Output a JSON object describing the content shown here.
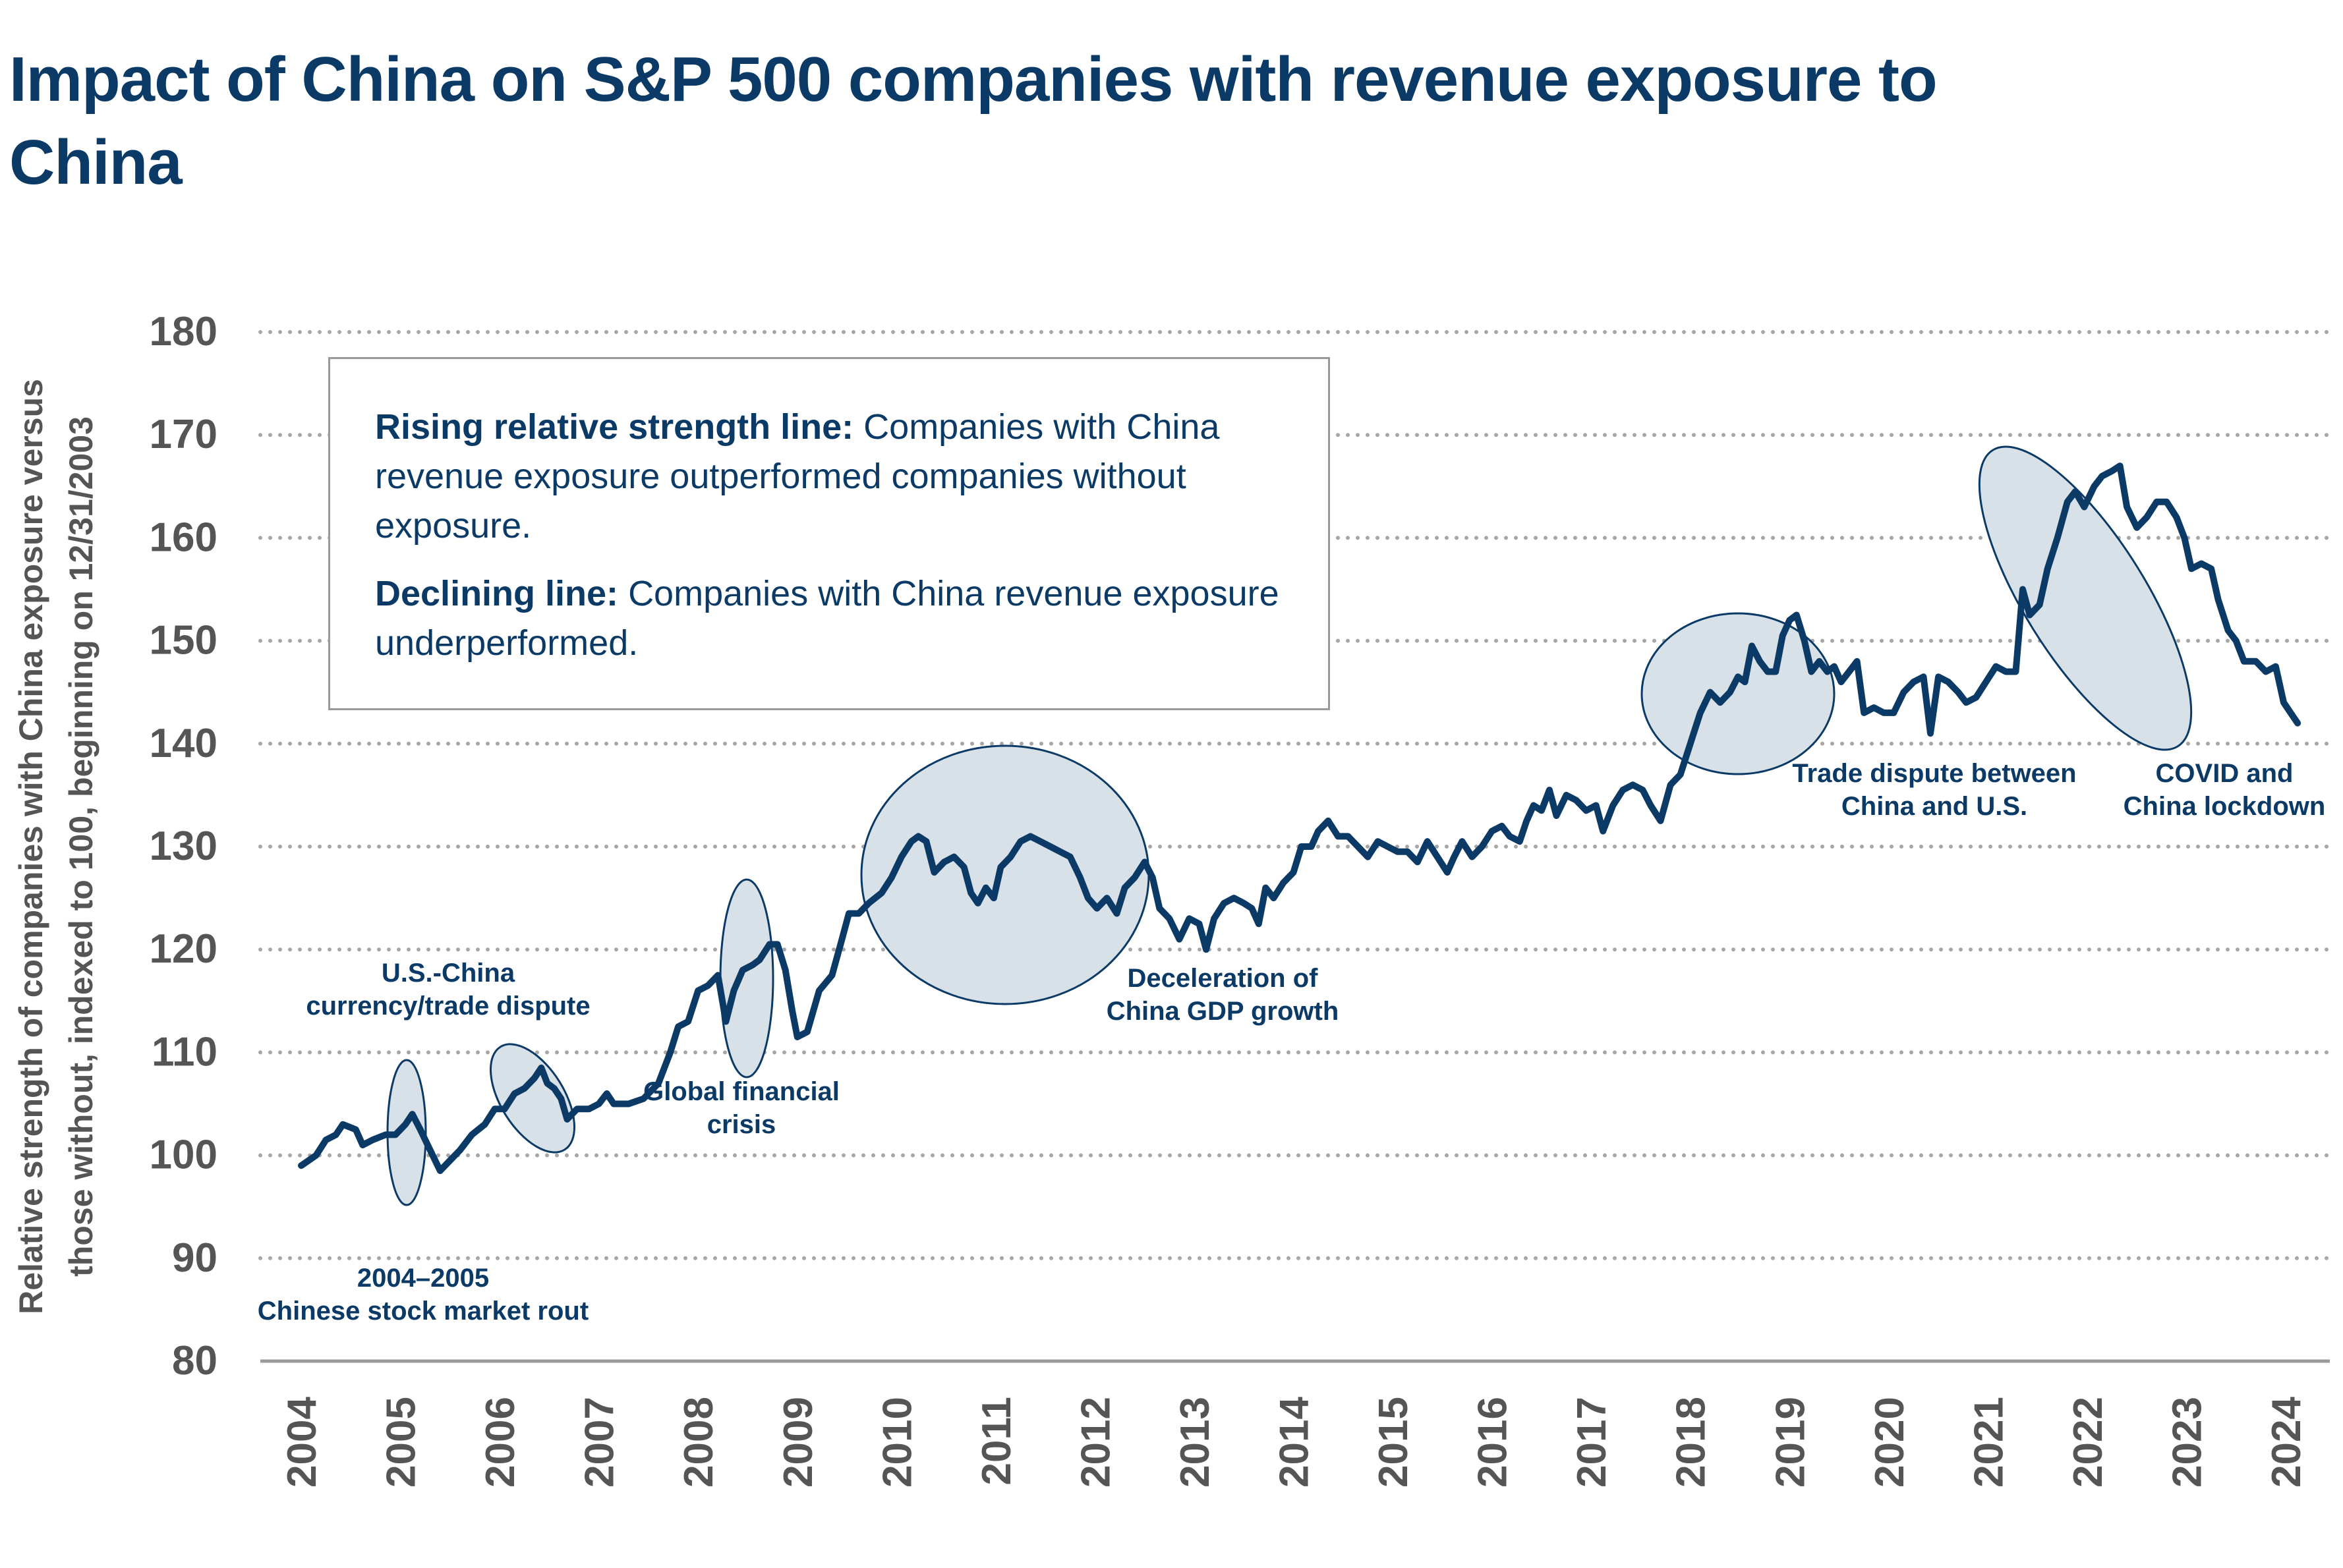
{
  "title": "Impact of China on S&P 500 companies with revenue exposure to China",
  "info_box": {
    "rising_heading": "Rising relative strength line:",
    "rising_text": "Companies with China revenue exposure outperformed companies without exposure.",
    "declining_heading": "Declining line:",
    "declining_text": "Companies with China revenue exposure underperformed."
  },
  "colors": {
    "line": "#0b3a66",
    "ellipse_fill": "#d8e0e8",
    "ellipse_stroke": "#0b3a66",
    "grid": "#a6a6a6",
    "axis_text": "#555555",
    "annotation_text": "#0b3a66"
  },
  "chart_data": {
    "type": "line",
    "title": "Impact of China on S&P 500 companies with revenue exposure to China",
    "ylabel": "Relative strength of companies with China exposure versus those without, indexed to 100, beginning on 12/31/2003",
    "xlabel": "",
    "ylim": [
      80,
      180
    ],
    "yticks": [
      80,
      90,
      100,
      110,
      120,
      130,
      140,
      150,
      160,
      170,
      180
    ],
    "xlim": [
      2004,
      2024.3
    ],
    "xticks": [
      "2004",
      "2005",
      "2006",
      "2007",
      "2008",
      "2009",
      "2010",
      "2011",
      "2012",
      "2013",
      "2014",
      "2015",
      "2016",
      "2017",
      "2018",
      "2019",
      "2020",
      "2021",
      "2022",
      "2023",
      "2024"
    ],
    "grid": "horizontal dotted",
    "series": [
      {
        "points": [
          [
            2004.0,
            99
          ],
          [
            2004.15,
            100
          ],
          [
            2004.25,
            101.5
          ],
          [
            2004.35,
            102
          ],
          [
            2004.42,
            103
          ],
          [
            2004.55,
            102.5
          ],
          [
            2004.62,
            101
          ],
          [
            2004.72,
            101.5
          ],
          [
            2004.85,
            102
          ],
          [
            2004.95,
            102
          ],
          [
            2005.05,
            103
          ],
          [
            2005.12,
            104
          ],
          [
            2005.2,
            102.5
          ],
          [
            2005.3,
            100.5
          ],
          [
            2005.4,
            98.5
          ],
          [
            2005.5,
            99.5
          ],
          [
            2005.6,
            100.5
          ],
          [
            2005.72,
            102
          ],
          [
            2005.85,
            103
          ],
          [
            2005.95,
            104.5
          ],
          [
            2006.05,
            104.5
          ],
          [
            2006.15,
            106
          ],
          [
            2006.25,
            106.5
          ],
          [
            2006.35,
            107.5
          ],
          [
            2006.42,
            108.5
          ],
          [
            2006.48,
            107
          ],
          [
            2006.55,
            106.5
          ],
          [
            2006.62,
            105.5
          ],
          [
            2006.68,
            103.5
          ],
          [
            2006.78,
            104.5
          ],
          [
            2006.9,
            104.5
          ],
          [
            2007.0,
            105
          ],
          [
            2007.08,
            106
          ],
          [
            2007.15,
            105
          ],
          [
            2007.3,
            105
          ],
          [
            2007.45,
            105.5
          ],
          [
            2007.6,
            107
          ],
          [
            2007.72,
            110
          ],
          [
            2007.8,
            112.5
          ],
          [
            2007.9,
            113
          ],
          [
            2008.0,
            116
          ],
          [
            2008.1,
            116.5
          ],
          [
            2008.2,
            117.5
          ],
          [
            2008.28,
            113
          ],
          [
            2008.36,
            116
          ],
          [
            2008.45,
            118
          ],
          [
            2008.55,
            118.5
          ],
          [
            2008.62,
            119
          ],
          [
            2008.72,
            120.5
          ],
          [
            2008.8,
            120.5
          ],
          [
            2008.88,
            118
          ],
          [
            2008.95,
            114
          ],
          [
            2009.0,
            111.5
          ],
          [
            2009.1,
            112
          ],
          [
            2009.22,
            116
          ],
          [
            2009.35,
            117.5
          ],
          [
            2009.45,
            121
          ],
          [
            2009.52,
            123.5
          ],
          [
            2009.62,
            123.5
          ],
          [
            2009.72,
            124.5
          ],
          [
            2009.85,
            125.5
          ],
          [
            2009.95,
            127
          ],
          [
            2010.05,
            129
          ],
          [
            2010.15,
            130.5
          ],
          [
            2010.22,
            131
          ],
          [
            2010.3,
            130.5
          ],
          [
            2010.38,
            127.5
          ],
          [
            2010.48,
            128.5
          ],
          [
            2010.58,
            129
          ],
          [
            2010.68,
            128
          ],
          [
            2010.75,
            125.5
          ],
          [
            2010.82,
            124.5
          ],
          [
            2010.9,
            126
          ],
          [
            2010.98,
            125
          ],
          [
            2011.05,
            128
          ],
          [
            2011.15,
            129
          ],
          [
            2011.25,
            130.5
          ],
          [
            2011.35,
            131
          ],
          [
            2011.45,
            130.5
          ],
          [
            2011.55,
            130
          ],
          [
            2011.65,
            129.5
          ],
          [
            2011.75,
            129
          ],
          [
            2011.85,
            127
          ],
          [
            2011.93,
            125
          ],
          [
            2012.02,
            124
          ],
          [
            2012.12,
            125
          ],
          [
            2012.22,
            123.5
          ],
          [
            2012.3,
            126
          ],
          [
            2012.4,
            127
          ],
          [
            2012.5,
            128.5
          ],
          [
            2012.58,
            127
          ],
          [
            2012.65,
            124
          ],
          [
            2012.75,
            123
          ],
          [
            2012.85,
            121
          ],
          [
            2012.95,
            123
          ],
          [
            2013.05,
            122.5
          ],
          [
            2013.12,
            120
          ],
          [
            2013.2,
            123
          ],
          [
            2013.3,
            124.5
          ],
          [
            2013.4,
            125
          ],
          [
            2013.5,
            124.5
          ],
          [
            2013.58,
            124
          ],
          [
            2013.65,
            122.5
          ],
          [
            2013.72,
            126
          ],
          [
            2013.8,
            125
          ],
          [
            2013.9,
            126.5
          ],
          [
            2014.0,
            127.5
          ],
          [
            2014.08,
            130
          ],
          [
            2014.18,
            130
          ],
          [
            2014.25,
            131.5
          ],
          [
            2014.35,
            132.5
          ],
          [
            2014.45,
            131
          ],
          [
            2014.55,
            131
          ],
          [
            2014.65,
            130
          ],
          [
            2014.75,
            129
          ],
          [
            2014.85,
            130.5
          ],
          [
            2014.95,
            130
          ],
          [
            2015.05,
            129.5
          ],
          [
            2015.15,
            129.5
          ],
          [
            2015.25,
            128.5
          ],
          [
            2015.35,
            130.5
          ],
          [
            2015.45,
            129
          ],
          [
            2015.55,
            127.5
          ],
          [
            2015.62,
            129
          ],
          [
            2015.7,
            130.5
          ],
          [
            2015.8,
            129
          ],
          [
            2015.9,
            130
          ],
          [
            2016.0,
            131.5
          ],
          [
            2016.1,
            132
          ],
          [
            2016.18,
            131
          ],
          [
            2016.28,
            130.5
          ],
          [
            2016.35,
            132.5
          ],
          [
            2016.42,
            134
          ],
          [
            2016.5,
            133.5
          ],
          [
            2016.58,
            135.5
          ],
          [
            2016.65,
            133
          ],
          [
            2016.75,
            135
          ],
          [
            2016.85,
            134.5
          ],
          [
            2016.95,
            133.5
          ],
          [
            2017.05,
            134
          ],
          [
            2017.12,
            131.5
          ],
          [
            2017.22,
            134
          ],
          [
            2017.32,
            135.5
          ],
          [
            2017.42,
            136
          ],
          [
            2017.52,
            135.5
          ],
          [
            2017.6,
            134
          ],
          [
            2017.7,
            132.5
          ],
          [
            2017.8,
            136
          ],
          [
            2017.9,
            137
          ],
          [
            2018.0,
            140
          ],
          [
            2018.1,
            143
          ],
          [
            2018.2,
            145
          ],
          [
            2018.3,
            144
          ],
          [
            2018.4,
            145
          ],
          [
            2018.48,
            146.5
          ],
          [
            2018.55,
            146
          ],
          [
            2018.62,
            149.5
          ],
          [
            2018.7,
            148
          ],
          [
            2018.78,
            147
          ],
          [
            2018.86,
            147
          ],
          [
            2018.93,
            150.5
          ],
          [
            2019.0,
            152
          ],
          [
            2019.07,
            152.5
          ],
          [
            2019.15,
            150
          ],
          [
            2019.22,
            147
          ],
          [
            2019.3,
            148
          ],
          [
            2019.38,
            147
          ],
          [
            2019.45,
            147.5
          ],
          [
            2019.52,
            146
          ],
          [
            2019.6,
            147
          ],
          [
            2019.68,
            148
          ],
          [
            2019.75,
            143
          ],
          [
            2019.85,
            143.5
          ],
          [
            2019.95,
            143
          ],
          [
            2020.05,
            143
          ],
          [
            2020.15,
            145
          ],
          [
            2020.25,
            146
          ],
          [
            2020.35,
            146.5
          ],
          [
            2020.42,
            141
          ],
          [
            2020.5,
            146.5
          ],
          [
            2020.6,
            146
          ],
          [
            2020.7,
            145
          ],
          [
            2020.78,
            144
          ],
          [
            2020.88,
            144.5
          ],
          [
            2020.98,
            146
          ],
          [
            2021.08,
            147.5
          ],
          [
            2021.18,
            147
          ],
          [
            2021.28,
            147
          ],
          [
            2021.35,
            155
          ],
          [
            2021.42,
            152.5
          ],
          [
            2021.52,
            153.5
          ],
          [
            2021.6,
            157
          ],
          [
            2021.7,
            160
          ],
          [
            2021.8,
            163.5
          ],
          [
            2021.88,
            164.5
          ],
          [
            2021.97,
            163
          ],
          [
            2022.07,
            165
          ],
          [
            2022.15,
            166
          ],
          [
            2022.25,
            166.5
          ],
          [
            2022.33,
            167
          ],
          [
            2022.4,
            163
          ],
          [
            2022.5,
            161
          ],
          [
            2022.6,
            162
          ],
          [
            2022.7,
            163.5
          ],
          [
            2022.8,
            163.5
          ],
          [
            2022.9,
            162
          ],
          [
            2022.98,
            160
          ],
          [
            2023.05,
            157
          ],
          [
            2023.15,
            157.5
          ],
          [
            2023.25,
            157
          ],
          [
            2023.32,
            154
          ],
          [
            2023.42,
            151
          ],
          [
            2023.5,
            150
          ],
          [
            2023.58,
            148
          ],
          [
            2023.7,
            148
          ],
          [
            2023.8,
            147
          ],
          [
            2023.9,
            147.5
          ],
          [
            2023.98,
            144
          ],
          [
            2024.05,
            143
          ],
          [
            2024.12,
            142
          ]
        ]
      }
    ],
    "annotations": [
      {
        "text": "2004–2005\nChinese stock market rout"
      },
      {
        "text": "U.S.-China\ncurrency/trade dispute"
      },
      {
        "text": "Global financial\ncrisis"
      },
      {
        "text": "Deceleration of\nChina GDP growth"
      },
      {
        "text": "Trade dispute between\nChina and U.S."
      },
      {
        "text": "COVID and\nChina lockdown"
      }
    ]
  }
}
